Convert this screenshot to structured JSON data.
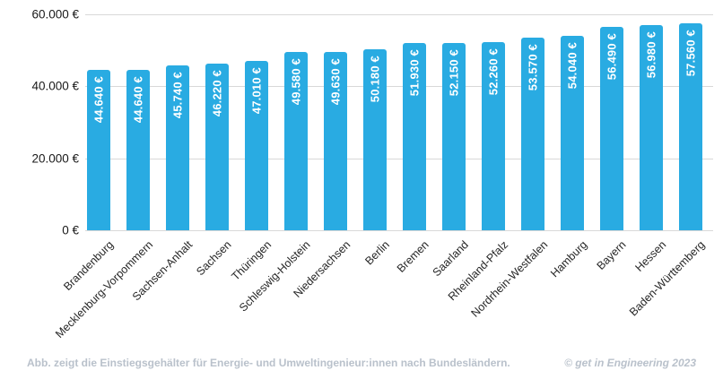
{
  "chart_data": {
    "type": "bar",
    "title": "",
    "categories": [
      "Brandenburg",
      "Mecklenburg-Vorpommern",
      "Sachsen-Anhalt",
      "Sachsen",
      "Thüringen",
      "Schleswig-Holstein",
      "Niedersachsen",
      "Berlin",
      "Bremen",
      "Saarland",
      "Rheinland-Pfalz",
      "Nordrhein-Westfalen",
      "Hamburg",
      "Bayern",
      "Hessen",
      "Baden-Württemberg"
    ],
    "values": [
      44640,
      44640,
      45740,
      46220,
      47010,
      49580,
      49630,
      50180,
      51930,
      52150,
      52260,
      53570,
      54040,
      56490,
      56980,
      57560
    ],
    "value_labels": [
      "44.640 €",
      "44.640 €",
      "45.740 €",
      "46.220 €",
      "47.010 €",
      "49.580 €",
      "49.630 €",
      "50.180 €",
      "51.930 €",
      "52.150 €",
      "52.260 €",
      "53.570 €",
      "54.040 €",
      "56.490 €",
      "56.980 €",
      "57.560 €"
    ],
    "xlabel": "",
    "ylabel": "",
    "ylim": [
      0,
      60000
    ],
    "yticks": [
      {
        "value": 0,
        "label": "0 €"
      },
      {
        "value": 20000,
        "label": "20.000 €"
      },
      {
        "value": 40000,
        "label": "40.000 €"
      },
      {
        "value": 60000,
        "label": "60.000 €"
      }
    ],
    "grid": true,
    "legend_position": "none",
    "colors": {
      "bar": "#29ABE2",
      "bar_value_text": "#FFFFFF",
      "gridline": "#D8D8D8",
      "axis_text": "#1A1A1A",
      "category_text": "#262626",
      "footer_text": "#B9C1CB"
    }
  },
  "footer": {
    "caption": "Abb. zeigt die Einstiegsgehälter für Energie- und Umweltingenieur:innen nach Bundesländern.",
    "copyright": "© get in Engineering 2023"
  }
}
